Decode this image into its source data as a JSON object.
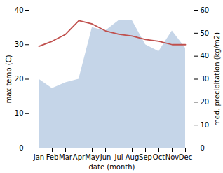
{
  "chart_data": {
    "type": "line",
    "xlabel": "date (month)",
    "ylabel": "max temp (C)",
    "y2label": "med. precipitation (kg/m2)",
    "categories": [
      "Jan",
      "Feb",
      "Mar",
      "Apr",
      "May",
      "Jun",
      "Jul",
      "Aug",
      "Sep",
      "Oct",
      "Nov",
      "Dec"
    ],
    "series": [
      {
        "type": "area",
        "axis": "y2",
        "color": "#c5d5e8",
        "values": [
          30.0,
          26.0,
          28.5,
          30.0,
          52.5,
          51.0,
          55.5,
          55.5,
          45.0,
          42.0,
          51.0,
          43.5
        ]
      },
      {
        "type": "line",
        "color": "#c0504d",
        "values": [
          29.5,
          31.0,
          33.0,
          37.0,
          36.0,
          34.0,
          33.0,
          32.5,
          31.5,
          31.0,
          30.0,
          30.0
        ]
      }
    ],
    "ylim": [
      0,
      40
    ],
    "yticks": [
      0,
      10,
      20,
      30,
      40
    ],
    "y2lim": [
      0,
      60
    ],
    "y2ticks": [
      0,
      10,
      20,
      30,
      40,
      50,
      60
    ]
  }
}
